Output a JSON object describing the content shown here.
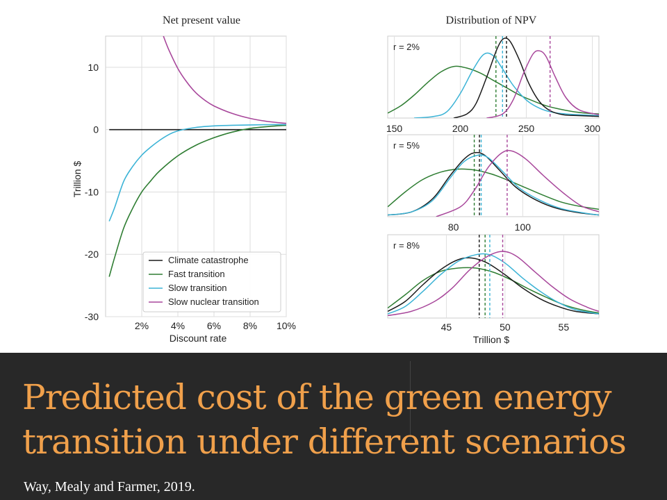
{
  "slide": {
    "title_line1": "Predicted cost of the green energy",
    "title_line2": "transition under different scenarios",
    "citation": "Way, Mealy and Farmer, 2019."
  },
  "colors": {
    "climate_catastrophe": "#1a1a1a",
    "fast_transition": "#2e7d32",
    "slow_transition": "#3bb3d6",
    "slow_nuclear_transition": "#a8479b",
    "title": "#f0a04b",
    "band": "#282828"
  },
  "chart_data": [
    {
      "type": "line",
      "title": "Net present value",
      "xlabel": "Discount rate",
      "ylabel": "Trillion $",
      "xlim": [
        0,
        10
      ],
      "ylim": [
        -30,
        15
      ],
      "x_ticks": [
        2,
        4,
        6,
        8,
        10
      ],
      "x_tick_labels": [
        "2%",
        "4%",
        "6%",
        "8%",
        "10%"
      ],
      "y_ticks": [
        10,
        0,
        -10,
        -20,
        -30
      ],
      "y_tick_labels": [
        "10",
        "0",
        "-10",
        "-20",
        "-30"
      ],
      "grid": true,
      "legend_position": "lower-right",
      "series": [
        {
          "name": "Climate catastrophe",
          "color_key": "climate_catastrophe",
          "x": [
            0.2,
            10
          ],
          "y": [
            0,
            0
          ]
        },
        {
          "name": "Fast transition",
          "color_key": "fast_transition",
          "x": [
            0.2,
            0.5,
            1,
            1.5,
            2,
            2.5,
            3,
            4,
            5,
            6,
            7,
            8,
            9,
            10
          ],
          "y": [
            -23.6,
            -20.5,
            -15.8,
            -12.6,
            -10.0,
            -8.2,
            -6.6,
            -4.2,
            -2.5,
            -1.3,
            -0.4,
            0.2,
            0.5,
            0.7
          ]
        },
        {
          "name": "Slow transition",
          "color_key": "slow_transition",
          "x": [
            0.2,
            0.5,
            1,
            1.5,
            2,
            2.5,
            3,
            3.5,
            4,
            5,
            6,
            7,
            8,
            9,
            10
          ],
          "y": [
            -14.7,
            -12.5,
            -8.3,
            -5.9,
            -4.1,
            -2.8,
            -1.7,
            -0.8,
            -0.2,
            0.35,
            0.6,
            0.7,
            0.75,
            0.8,
            0.8
          ]
        },
        {
          "name": "Slow nuclear transition",
          "color_key": "slow_nuclear_transition",
          "x": [
            3.2,
            3.5,
            4,
            4.5,
            5,
            5.5,
            6,
            7,
            8,
            9,
            10
          ],
          "y": [
            15,
            12.8,
            9.8,
            7.6,
            5.9,
            4.7,
            3.8,
            2.6,
            1.8,
            1.3,
            1.0
          ]
        }
      ]
    },
    {
      "type": "line",
      "title": "Distribution of NPV",
      "xlabel": "Trillion $",
      "panels": [
        {
          "label": "r = 2%",
          "xlim": [
            145,
            305
          ],
          "x_ticks": [
            150,
            200,
            250,
            300
          ],
          "x_tick_labels": [
            "150",
            "200",
            "250",
            "300"
          ],
          "series": [
            {
              "name": "Fast transition",
              "color_key": "fast_transition",
              "mean": 227,
              "x": [
                145,
                155,
                165,
                175,
                185,
                195,
                205,
                215,
                225,
                235,
                245,
                255,
                265,
                275,
                285,
                295,
                305
              ],
              "y": [
                0.06,
                0.15,
                0.28,
                0.43,
                0.56,
                0.63,
                0.61,
                0.55,
                0.46,
                0.37,
                0.28,
                0.21,
                0.15,
                0.11,
                0.08,
                0.06,
                0.05
              ]
            },
            {
              "name": "Slow transition",
              "color_key": "slow_transition",
              "mean": 232,
              "x": [
                165,
                180,
                190,
                200,
                210,
                218,
                225,
                232,
                240,
                250,
                260,
                270,
                280,
                290,
                305
              ],
              "y": [
                0.0,
                0.02,
                0.08,
                0.3,
                0.6,
                0.78,
                0.76,
                0.6,
                0.4,
                0.22,
                0.12,
                0.07,
                0.05,
                0.04,
                0.03
              ]
            },
            {
              "name": "Climate catastrophe",
              "color_key": "climate_catastrophe",
              "mean": 235,
              "x": [
                195,
                205,
                212,
                220,
                228,
                233,
                238,
                245,
                252,
                260,
                268,
                278,
                290,
                305
              ],
              "y": [
                0.0,
                0.05,
                0.18,
                0.5,
                0.85,
                0.97,
                0.93,
                0.7,
                0.42,
                0.2,
                0.09,
                0.04,
                0.03,
                0.02
              ]
            },
            {
              "name": "Slow nuclear transition",
              "color_key": "slow_nuclear_transition",
              "mean": 268,
              "x": [
                220,
                232,
                240,
                248,
                255,
                260,
                265,
                272,
                280,
                290,
                305
              ],
              "y": [
                0.0,
                0.05,
                0.22,
                0.55,
                0.78,
                0.82,
                0.75,
                0.5,
                0.25,
                0.1,
                0.04
              ]
            }
          ]
        },
        {
          "label": "r = 5%",
          "xlim": [
            61,
            122
          ],
          "x_ticks": [
            80,
            100
          ],
          "x_tick_labels": [
            "80",
            "100"
          ],
          "series": [
            {
              "name": "Fast transition",
              "color_key": "fast_transition",
              "mean": 86,
              "x": [
                61,
                66,
                71,
                76,
                81,
                86,
                91,
                96,
                101,
                106,
                111,
                116,
                122
              ],
              "y": [
                0.12,
                0.3,
                0.45,
                0.54,
                0.58,
                0.57,
                0.52,
                0.44,
                0.35,
                0.26,
                0.18,
                0.13,
                0.09
              ]
            },
            {
              "name": "Climate catastrophe",
              "color_key": "climate_catastrophe",
              "mean": 87.5,
              "x": [
                61,
                68,
                74,
                79,
                83,
                86,
                89,
                93,
                98,
                104,
                110,
                116,
                122
              ],
              "y": [
                0.02,
                0.06,
                0.22,
                0.5,
                0.7,
                0.78,
                0.75,
                0.58,
                0.36,
                0.2,
                0.1,
                0.05,
                0.02
              ]
            },
            {
              "name": "Slow transition",
              "color_key": "slow_transition",
              "mean": 88,
              "x": [
                61,
                68,
                74,
                79,
                83,
                87,
                90,
                94,
                99,
                105,
                111,
                117,
                122
              ],
              "y": [
                0.02,
                0.06,
                0.2,
                0.47,
                0.67,
                0.75,
                0.72,
                0.56,
                0.35,
                0.2,
                0.1,
                0.05,
                0.02
              ]
            },
            {
              "name": "Slow nuclear transition",
              "color_key": "slow_nuclear_transition",
              "mean": 95.5,
              "x": [
                75,
                82,
                86,
                90,
                94,
                97,
                101,
                106,
                112,
                117,
                122
              ],
              "y": [
                0.0,
                0.12,
                0.32,
                0.6,
                0.78,
                0.8,
                0.7,
                0.5,
                0.28,
                0.13,
                0.06
              ]
            }
          ]
        },
        {
          "label": "r = 8%",
          "xlim": [
            40,
            58
          ],
          "x_ticks": [
            45,
            50,
            55
          ],
          "x_tick_labels": [
            "45",
            "50",
            "55"
          ],
          "series": [
            {
              "name": "Fast transition",
              "color_key": "fast_transition",
              "mean": 48.3,
              "x": [
                40,
                41.5,
                43,
                44.5,
                46,
                47.5,
                49,
                50.5,
                52,
                53.5,
                55,
                56.5,
                58
              ],
              "y": [
                0.12,
                0.28,
                0.45,
                0.56,
                0.6,
                0.6,
                0.55,
                0.46,
                0.35,
                0.25,
                0.16,
                0.1,
                0.06
              ]
            },
            {
              "name": "Climate catastrophe",
              "color_key": "climate_catastrophe",
              "mean": 47.8,
              "x": [
                40,
                41.5,
                43,
                44.5,
                46,
                47.2,
                48.5,
                50,
                51.5,
                53,
                54.5,
                56,
                58
              ],
              "y": [
                0.08,
                0.2,
                0.4,
                0.58,
                0.7,
                0.72,
                0.66,
                0.52,
                0.36,
                0.23,
                0.14,
                0.08,
                0.05
              ]
            },
            {
              "name": "Slow transition",
              "color_key": "slow_transition",
              "mean": 48.7,
              "x": [
                40,
                41.5,
                43,
                44.5,
                46,
                47.5,
                48.7,
                50,
                51.5,
                53,
                54.5,
                56,
                58
              ],
              "y": [
                0.05,
                0.14,
                0.32,
                0.52,
                0.68,
                0.76,
                0.76,
                0.66,
                0.48,
                0.32,
                0.19,
                0.1,
                0.05
              ]
            },
            {
              "name": "Slow nuclear transition",
              "color_key": "slow_nuclear_transition",
              "mean": 49.8,
              "x": [
                40,
                42,
                44,
                45.5,
                47,
                48.5,
                49.8,
                51,
                52.5,
                54,
                55.5,
                57,
                58
              ],
              "y": [
                0.03,
                0.08,
                0.2,
                0.36,
                0.58,
                0.74,
                0.8,
                0.74,
                0.56,
                0.38,
                0.23,
                0.13,
                0.08
              ]
            }
          ]
        }
      ]
    }
  ]
}
